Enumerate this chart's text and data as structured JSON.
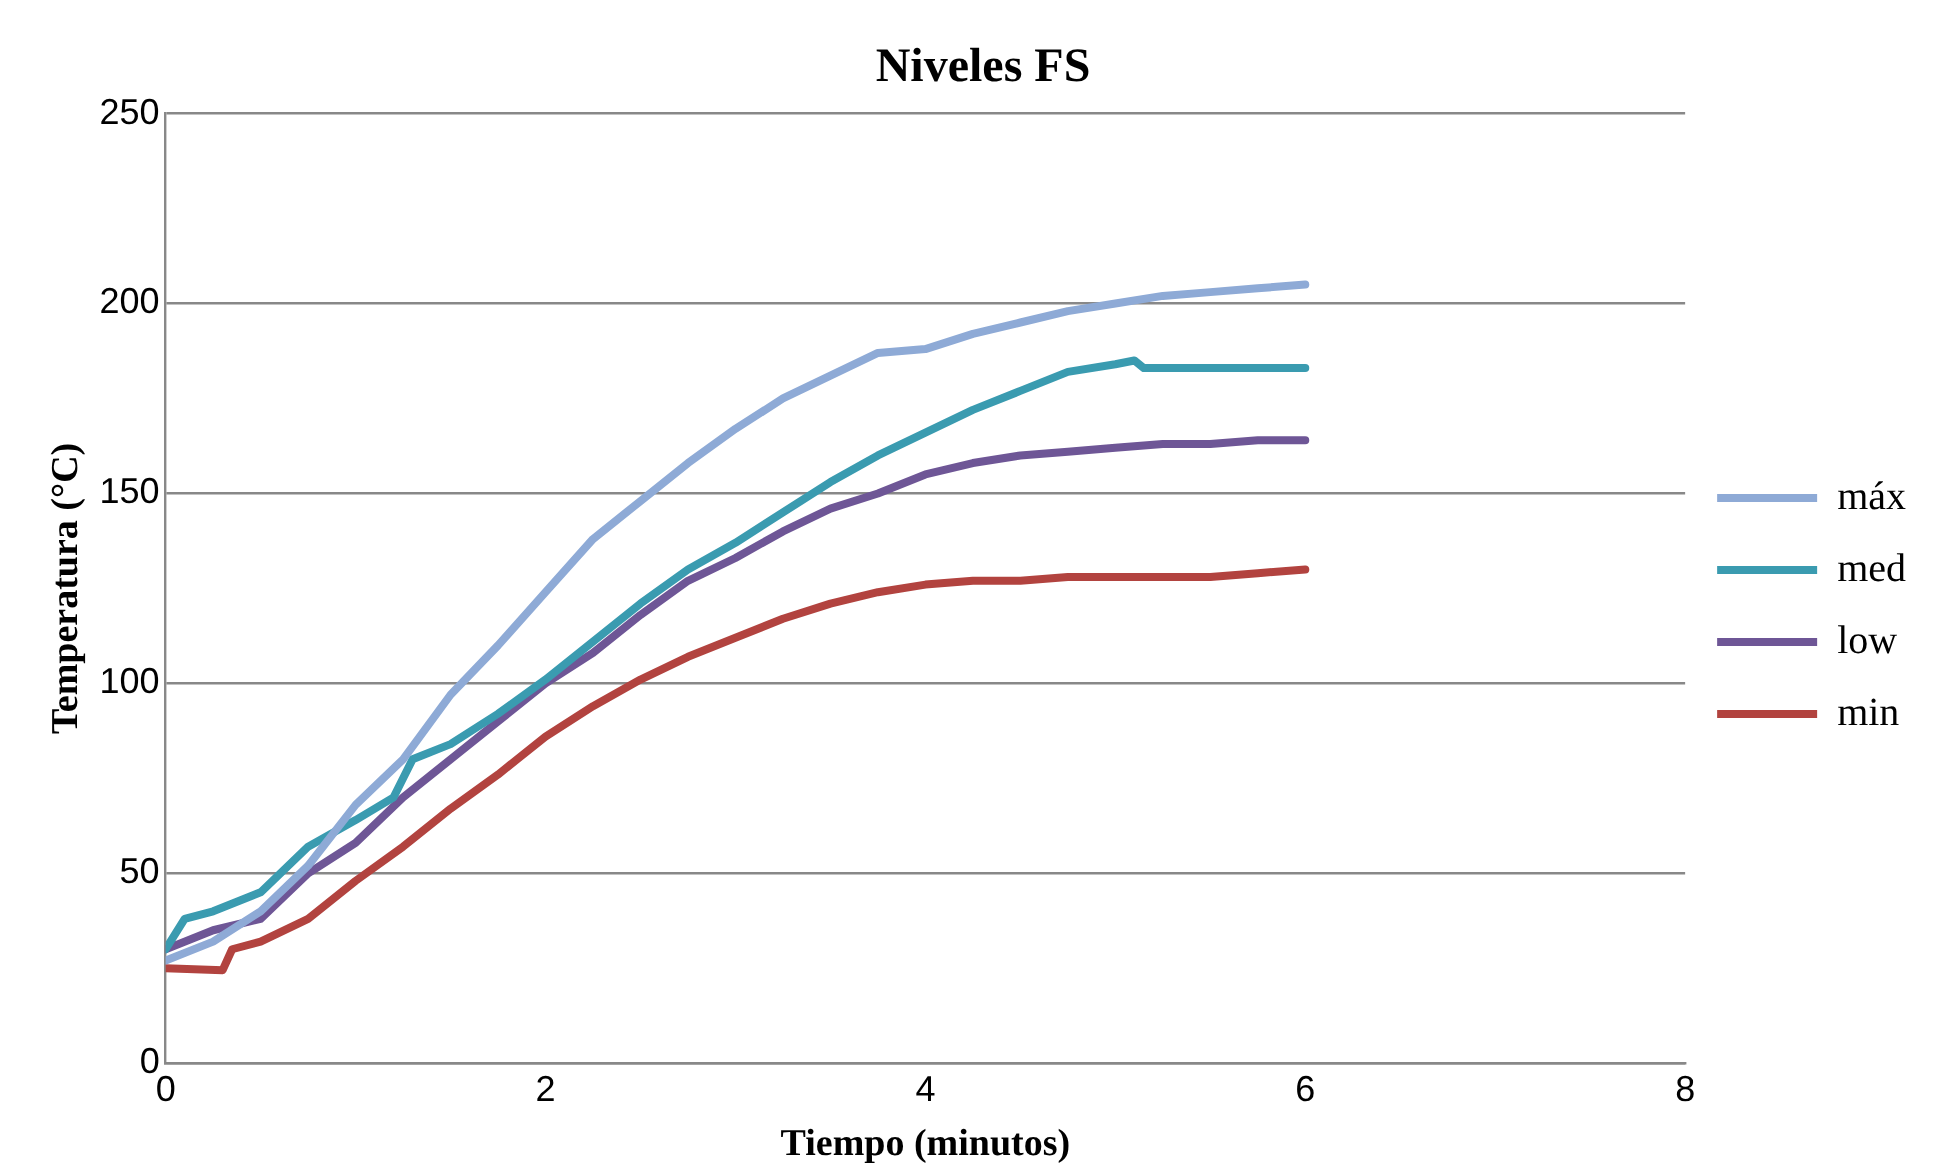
{
  "chart_data": {
    "type": "line",
    "title": "Niveles FS",
    "xlabel": "Tiempo (minutos)",
    "ylabel": "Temperatura (°C)",
    "xlim": [
      0,
      8
    ],
    "xticks": [
      0,
      2,
      4,
      6,
      8
    ],
    "ylim": [
      0,
      250
    ],
    "yticks": [
      0,
      50,
      100,
      150,
      200,
      250
    ],
    "grid": "y",
    "legend": "right",
    "marker": "none",
    "line_style": "solid",
    "series": [
      {
        "name": "máx",
        "color": "#8eaad6",
        "x": [
          0,
          0.25,
          0.5,
          0.75,
          1,
          1.25,
          1.5,
          1.75,
          2,
          2.25,
          2.5,
          2.75,
          3,
          3.25,
          3.5,
          3.75,
          4,
          4.25,
          4.5,
          4.75,
          5,
          5.25,
          5.5,
          5.75,
          6
        ],
        "values": [
          27,
          32,
          40,
          52,
          68,
          80,
          97,
          110,
          124,
          138,
          148,
          158,
          167,
          175,
          181,
          187,
          188,
          192,
          195,
          198,
          200,
          202,
          203,
          204,
          205
        ]
      },
      {
        "name": "med",
        "color": "#3a9bb0",
        "x": [
          0,
          0.1,
          0.25,
          0.5,
          0.75,
          1,
          1.2,
          1.3,
          1.5,
          1.75,
          2,
          2.25,
          2.5,
          2.75,
          3,
          3.25,
          3.5,
          3.75,
          4,
          4.25,
          4.5,
          4.75,
          5,
          5.1,
          5.15,
          6
        ],
        "values": [
          30,
          38,
          40,
          45,
          57,
          64,
          70,
          80,
          84,
          92,
          101,
          111,
          121,
          130,
          137,
          145,
          153,
          160,
          166,
          172,
          177,
          182,
          184,
          185,
          183,
          183
        ]
      },
      {
        "name": "low",
        "color": "#6e5696",
        "x": [
          0,
          0.25,
          0.5,
          0.75,
          1,
          1.25,
          1.5,
          1.75,
          2,
          2.25,
          2.5,
          2.75,
          3,
          3.25,
          3.5,
          3.75,
          4,
          4.25,
          4.5,
          4.75,
          5,
          5.25,
          5.5,
          5.75,
          6
        ],
        "values": [
          30,
          35,
          38,
          50,
          58,
          70,
          80,
          90,
          100,
          108,
          118,
          127,
          133,
          140,
          146,
          150,
          155,
          158,
          160,
          161,
          162,
          163,
          163,
          164,
          164
        ]
      },
      {
        "name": "min",
        "color": "#b2433f",
        "x": [
          0,
          0.3,
          0.35,
          0.5,
          0.75,
          1,
          1.25,
          1.5,
          1.75,
          2,
          2.25,
          2.5,
          2.75,
          3,
          3.25,
          3.5,
          3.75,
          4,
          4.25,
          4.5,
          4.75,
          5,
          5.25,
          5.5,
          5.75,
          6
        ],
        "values": [
          25,
          24.5,
          30,
          32,
          38,
          48,
          57,
          67,
          76,
          86,
          94,
          101,
          107,
          112,
          117,
          121,
          124,
          126,
          127,
          127,
          128,
          128,
          128,
          128,
          129,
          130
        ]
      }
    ]
  }
}
